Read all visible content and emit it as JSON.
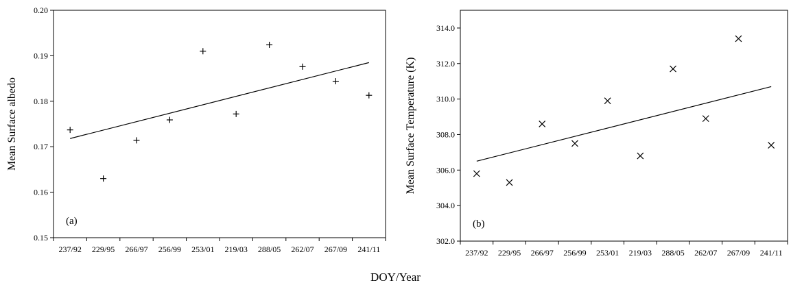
{
  "figure": {
    "shared_xlabel": "DOY/Year"
  },
  "chart_data": [
    {
      "type": "scatter",
      "panel_label": "(a)",
      "title": "",
      "xlabel": "",
      "ylabel": "Mean  Surface albedo",
      "categories": [
        "237/92",
        "229/95",
        "266/97",
        "256/99",
        "253/01",
        "219/03",
        "288/05",
        "262/07",
        "267/09",
        "241/11"
      ],
      "y_ticks": [
        "0.15",
        "0.16",
        "0.17",
        "0.18",
        "0.19",
        "0.20"
      ],
      "ylim": [
        0.15,
        0.2
      ],
      "marker": "plus",
      "series": [
        {
          "values": [
            0.1737,
            0.163,
            0.1714,
            0.1759,
            0.191,
            0.1772,
            0.1924,
            0.1876,
            0.1844,
            0.1813
          ]
        }
      ],
      "trendline": {
        "type": "linear",
        "start": 0.1718,
        "end": 0.1885
      },
      "grid": false
    },
    {
      "type": "scatter",
      "panel_label": "(b)",
      "title": "",
      "xlabel": "",
      "ylabel": "Mean  Surface Temperature (K)",
      "categories": [
        "237/92",
        "229/95",
        "266/97",
        "256/99",
        "253/01",
        "219/03",
        "288/05",
        "262/07",
        "267/09",
        "241/11"
      ],
      "y_ticks": [
        "302.0",
        "304.0",
        "306.0",
        "308.0",
        "310.0",
        "312.0",
        "314.0"
      ],
      "ylim": [
        302,
        315
      ],
      "marker": "cross",
      "series": [
        {
          "values": [
            305.8,
            305.3,
            308.6,
            307.5,
            309.9,
            306.8,
            311.7,
            308.9,
            313.4,
            307.4
          ]
        }
      ],
      "trendline": {
        "type": "linear",
        "start": 306.5,
        "end": 310.7
      },
      "grid": false
    }
  ]
}
